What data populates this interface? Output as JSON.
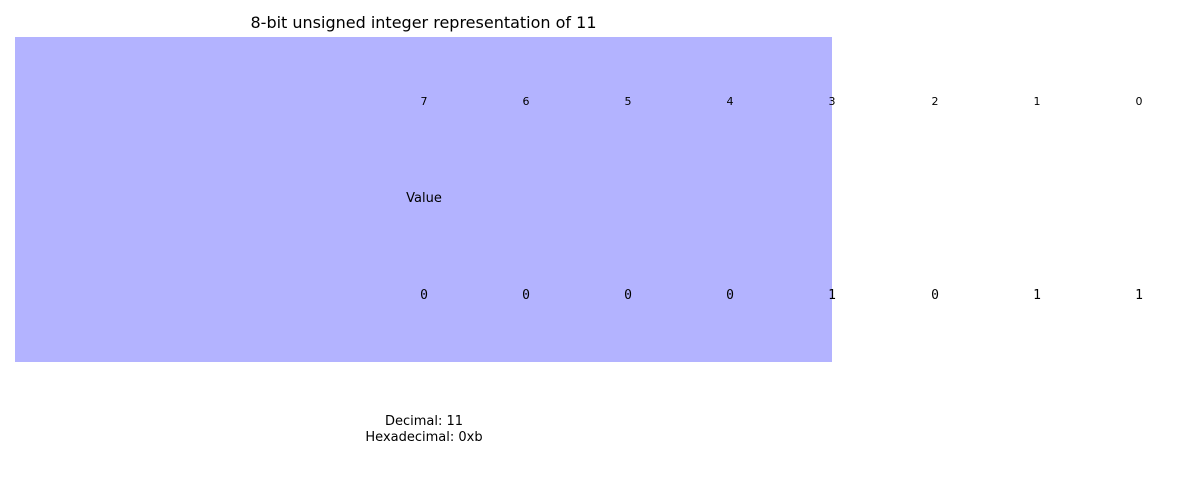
{
  "title": "8-bit unsigned integer representation of 11",
  "colors": {
    "panel": "#b3b3ff",
    "text": "#000000",
    "background": "#ffffff"
  },
  "row_label": "Value",
  "bit_indices": [
    "7",
    "6",
    "5",
    "4",
    "3",
    "2",
    "1",
    "0"
  ],
  "bit_values": [
    "0",
    "0",
    "0",
    "0",
    "1",
    "0",
    "1",
    "1"
  ],
  "info": {
    "decimal": "Decimal: 11",
    "hexadecimal": "Hexadecimal: 0xb"
  }
}
